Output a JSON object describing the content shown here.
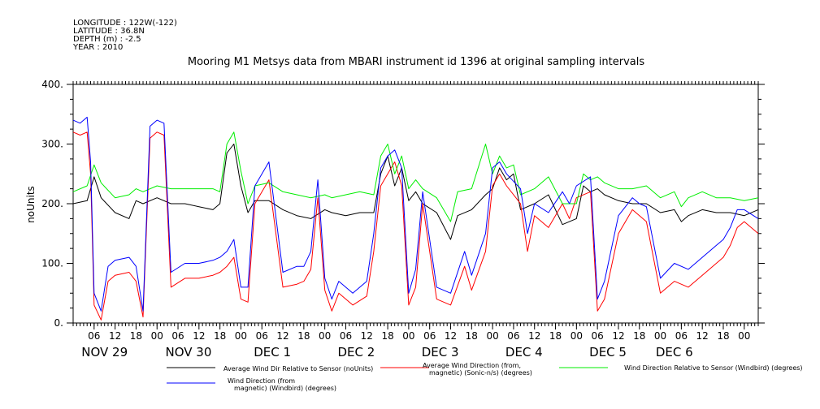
{
  "header": {
    "meta_lines": [
      "LONGITUDE : 122W(-122)",
      "LATITUDE : 36.8N",
      "DEPTH (m) : -2.5",
      "YEAR : 2010"
    ],
    "title": "Mooring M1 Metsys data from MBARI instrument id 1396 at original sampling intervals"
  },
  "chart_data": {
    "type": "line",
    "ylabel": "noUnits",
    "ylim": [
      0,
      400
    ],
    "yticks": [
      0,
      100,
      200,
      300,
      400
    ],
    "ytick_labels": [
      "0.",
      "100.",
      "200.",
      "300.",
      "400."
    ],
    "x_domain_hours": [
      0,
      196
    ],
    "hour_ticks": [
      {
        "h": 6,
        "label": "06"
      },
      {
        "h": 12,
        "label": "12"
      },
      {
        "h": 18,
        "label": "18"
      },
      {
        "h": 24,
        "label": "00"
      },
      {
        "h": 30,
        "label": "06"
      },
      {
        "h": 36,
        "label": "12"
      },
      {
        "h": 42,
        "label": "18"
      },
      {
        "h": 48,
        "label": "00"
      },
      {
        "h": 54,
        "label": "06"
      },
      {
        "h": 60,
        "label": "12"
      },
      {
        "h": 66,
        "label": "18"
      },
      {
        "h": 72,
        "label": "00"
      },
      {
        "h": 78,
        "label": "06"
      },
      {
        "h": 84,
        "label": "12"
      },
      {
        "h": 90,
        "label": "18"
      },
      {
        "h": 96,
        "label": "00"
      },
      {
        "h": 102,
        "label": "06"
      },
      {
        "h": 108,
        "label": "12"
      },
      {
        "h": 114,
        "label": "18"
      },
      {
        "h": 120,
        "label": "00"
      },
      {
        "h": 126,
        "label": "06"
      },
      {
        "h": 132,
        "label": "12"
      },
      {
        "h": 138,
        "label": "18"
      },
      {
        "h": 144,
        "label": "00"
      },
      {
        "h": 150,
        "label": "06"
      },
      {
        "h": 156,
        "label": "12"
      },
      {
        "h": 162,
        "label": "18"
      },
      {
        "h": 168,
        "label": "00"
      },
      {
        "h": 174,
        "label": "06"
      },
      {
        "h": 180,
        "label": "12"
      },
      {
        "h": 186,
        "label": "18"
      },
      {
        "h": 192,
        "label": "00"
      }
    ],
    "day_labels": [
      {
        "h": 9,
        "label": "NOV 29"
      },
      {
        "h": 33,
        "label": "NOV 30"
      },
      {
        "h": 57,
        "label": "DEC  1"
      },
      {
        "h": 81,
        "label": "DEC  2"
      },
      {
        "h": 105,
        "label": "DEC  3"
      },
      {
        "h": 129,
        "label": "DEC  4"
      },
      {
        "h": 153,
        "label": "DEC  5"
      },
      {
        "h": 172,
        "label": "DEC  6"
      }
    ],
    "series": [
      {
        "name": "Average Wind Dir Relative to Sensor (noUnits)",
        "color": "#000000",
        "x": [
          0,
          4,
          6,
          8,
          12,
          16,
          18,
          20,
          24,
          28,
          32,
          36,
          40,
          42,
          44,
          46,
          48,
          50,
          52,
          56,
          60,
          64,
          68,
          72,
          74,
          78,
          82,
          86,
          88,
          90,
          92,
          94,
          96,
          98,
          100,
          104,
          108,
          110,
          114,
          118,
          120,
          122,
          124,
          126,
          128,
          132,
          136,
          140,
          144,
          146,
          148,
          150,
          152,
          156,
          160,
          164,
          168,
          172,
          174,
          176,
          180,
          184,
          188,
          192,
          196
        ],
        "y": [
          200,
          205,
          245,
          210,
          185,
          175,
          205,
          200,
          210,
          200,
          200,
          195,
          190,
          200,
          285,
          300,
          230,
          185,
          205,
          205,
          190,
          180,
          175,
          190,
          185,
          180,
          185,
          185,
          250,
          280,
          230,
          260,
          205,
          220,
          200,
          185,
          140,
          180,
          190,
          215,
          225,
          260,
          240,
          250,
          190,
          200,
          215,
          165,
          175,
          230,
          220,
          225,
          215,
          205,
          200,
          200,
          185,
          190,
          170,
          180,
          190,
          185,
          185,
          180,
          190
        ]
      },
      {
        "name": "Average Wind Direction (from, magnetic) (Sonic-n/s) (degrees)",
        "color": "#ff0000",
        "x": [
          0,
          2,
          4,
          5,
          6,
          8,
          10,
          12,
          16,
          18,
          20,
          22,
          24,
          26,
          28,
          32,
          36,
          40,
          42,
          44,
          46,
          48,
          50,
          52,
          56,
          60,
          64,
          66,
          68,
          70,
          72,
          74,
          76,
          80,
          84,
          86,
          88,
          90,
          92,
          94,
          96,
          98,
          100,
          104,
          108,
          112,
          114,
          118,
          120,
          122,
          124,
          128,
          130,
          132,
          136,
          140,
          142,
          144,
          148,
          150,
          152,
          156,
          160,
          162,
          164,
          168,
          172,
          176,
          180,
          184,
          186,
          188,
          190,
          192,
          196
        ],
        "y": [
          320,
          315,
          320,
          250,
          30,
          5,
          70,
          80,
          85,
          70,
          10,
          310,
          320,
          315,
          60,
          75,
          75,
          80,
          85,
          95,
          110,
          40,
          35,
          200,
          240,
          60,
          65,
          70,
          90,
          210,
          55,
          20,
          50,
          30,
          45,
          120,
          230,
          250,
          270,
          230,
          30,
          60,
          200,
          40,
          30,
          95,
          55,
          120,
          230,
          250,
          230,
          200,
          120,
          180,
          160,
          200,
          175,
          210,
          220,
          20,
          40,
          150,
          190,
          180,
          170,
          50,
          70,
          60,
          80,
          100,
          110,
          130,
          160,
          170,
          150
        ]
      },
      {
        "name": "Wind Direction Relative to Sensor (Windbird) (degrees)",
        "color": "#00ee00",
        "x": [
          0,
          4,
          6,
          8,
          12,
          16,
          18,
          20,
          24,
          28,
          32,
          36,
          40,
          42,
          44,
          46,
          48,
          50,
          52,
          56,
          60,
          64,
          68,
          72,
          74,
          78,
          82,
          86,
          88,
          90,
          92,
          94,
          96,
          98,
          100,
          104,
          108,
          110,
          114,
          118,
          120,
          122,
          124,
          126,
          128,
          132,
          136,
          140,
          144,
          146,
          148,
          150,
          152,
          156,
          160,
          164,
          168,
          172,
          174,
          176,
          180,
          184,
          188,
          192,
          196
        ],
        "y": [
          220,
          230,
          265,
          235,
          210,
          215,
          225,
          220,
          230,
          225,
          225,
          225,
          225,
          220,
          300,
          320,
          255,
          200,
          230,
          235,
          220,
          215,
          210,
          215,
          210,
          215,
          220,
          215,
          280,
          300,
          250,
          280,
          225,
          240,
          225,
          210,
          170,
          220,
          225,
          300,
          250,
          280,
          260,
          265,
          215,
          225,
          245,
          200,
          200,
          250,
          240,
          245,
          235,
          225,
          225,
          230,
          210,
          220,
          195,
          210,
          220,
          210,
          210,
          205,
          210
        ]
      },
      {
        "name": "Wind Direction (from, magnetic) (Windbird) (degrees)",
        "color": "#0000ff",
        "x": [
          0,
          2,
          4,
          5,
          6,
          8,
          10,
          12,
          16,
          18,
          20,
          22,
          24,
          26,
          28,
          32,
          36,
          40,
          42,
          44,
          46,
          48,
          50,
          52,
          56,
          60,
          64,
          66,
          68,
          70,
          72,
          74,
          76,
          80,
          84,
          86,
          88,
          90,
          92,
          94,
          96,
          98,
          100,
          104,
          108,
          112,
          114,
          118,
          120,
          122,
          124,
          128,
          130,
          132,
          136,
          140,
          142,
          144,
          148,
          150,
          152,
          156,
          160,
          162,
          164,
          168,
          172,
          176,
          180,
          184,
          186,
          188,
          190,
          192,
          196
        ],
        "y": [
          340,
          335,
          345,
          270,
          50,
          20,
          95,
          105,
          110,
          95,
          20,
          330,
          340,
          335,
          85,
          100,
          100,
          105,
          110,
          120,
          140,
          60,
          60,
          230,
          270,
          85,
          95,
          95,
          120,
          240,
          75,
          40,
          70,
          50,
          70,
          150,
          260,
          280,
          290,
          260,
          50,
          90,
          220,
          60,
          50,
          120,
          80,
          150,
          260,
          270,
          250,
          225,
          150,
          200,
          185,
          220,
          200,
          230,
          245,
          40,
          70,
          180,
          210,
          200,
          195,
          75,
          100,
          90,
          110,
          130,
          140,
          160,
          190,
          190,
          175
        ]
      }
    ],
    "legend": [
      {
        "label": "Average Wind Dir Relative to Sensor (noUnits)",
        "color": "#000000"
      },
      {
        "label": "Average Wind Direction (from,\nmagnetic) (Sonic-n/s) (degrees)",
        "color": "#ff0000"
      },
      {
        "label": "Wind Direction Relative to Sensor (Windbird) (degrees)",
        "color": "#00ee00"
      },
      {
        "label": "Wind Direction (from\nmagnetic) (Windbird) (degrees)",
        "color": "#0000ff"
      }
    ]
  }
}
